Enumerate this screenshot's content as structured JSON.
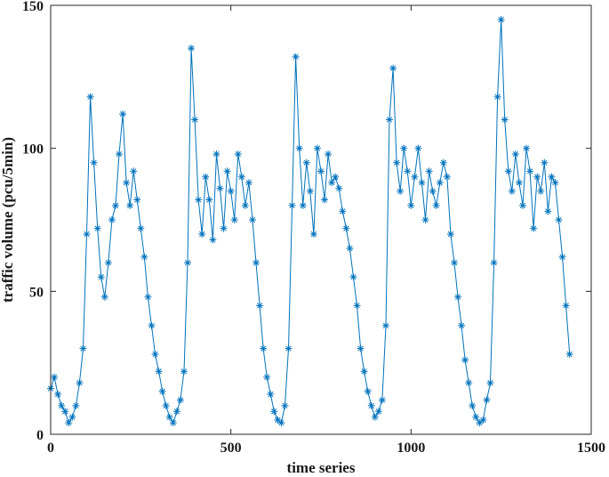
{
  "chart_data": {
    "type": "line",
    "marker": "asterisk",
    "xlabel": "time series",
    "ylabel": "traffic volume (pcu/5min)",
    "xlim": [
      0,
      1500
    ],
    "ylim": [
      0,
      150
    ],
    "xticks": [
      0,
      500,
      1000,
      1500
    ],
    "yticks": [
      0,
      50,
      100,
      150
    ],
    "grid": false,
    "legend": "none",
    "series": [
      {
        "color": "#0072BD",
        "x": [
          0,
          10,
          20,
          30,
          40,
          50,
          60,
          70,
          80,
          90,
          100,
          110,
          120,
          130,
          140,
          150,
          160,
          170,
          180,
          190,
          200,
          210,
          220,
          230,
          240,
          250,
          260,
          270,
          280,
          290,
          300,
          310,
          320,
          330,
          340,
          350,
          360,
          370,
          380,
          390,
          400,
          410,
          420,
          430,
          440,
          450,
          460,
          470,
          480,
          490,
          500,
          510,
          520,
          530,
          540,
          550,
          560,
          570,
          580,
          590,
          600,
          610,
          620,
          630,
          640,
          650,
          660,
          670,
          680,
          690,
          700,
          710,
          720,
          730,
          740,
          750,
          760,
          770,
          780,
          790,
          800,
          810,
          820,
          830,
          840,
          850,
          860,
          870,
          880,
          890,
          900,
          910,
          920,
          930,
          940,
          950,
          960,
          970,
          980,
          990,
          1000,
          1010,
          1020,
          1030,
          1040,
          1050,
          1060,
          1070,
          1080,
          1090,
          1100,
          1110,
          1120,
          1130,
          1140,
          1150,
          1160,
          1170,
          1180,
          1190,
          1200,
          1210,
          1220,
          1230,
          1240,
          1250,
          1260,
          1270,
          1280,
          1290,
          1300,
          1310,
          1320,
          1330,
          1340,
          1350,
          1360,
          1370,
          1380,
          1390,
          1400,
          1410,
          1420,
          1430,
          1440
        ],
        "y": [
          16,
          20,
          14,
          10,
          8,
          4,
          6,
          10,
          18,
          30,
          70,
          118,
          95,
          72,
          55,
          48,
          60,
          75,
          80,
          98,
          112,
          88,
          80,
          92,
          82,
          72,
          62,
          48,
          38,
          28,
          22,
          15,
          10,
          6,
          4,
          8,
          12,
          22,
          60,
          135,
          110,
          82,
          70,
          90,
          82,
          68,
          98,
          86,
          72,
          92,
          85,
          75,
          98,
          90,
          80,
          88,
          75,
          60,
          45,
          30,
          20,
          14,
          8,
          5,
          4,
          10,
          30,
          80,
          132,
          100,
          80,
          95,
          85,
          70,
          100,
          92,
          82,
          98,
          88,
          90,
          86,
          78,
          72,
          65,
          55,
          45,
          30,
          22,
          15,
          10,
          6,
          8,
          12,
          38,
          110,
          128,
          95,
          85,
          100,
          92,
          80,
          90,
          100,
          88,
          75,
          92,
          85,
          80,
          88,
          95,
          90,
          70,
          60,
          48,
          38,
          26,
          18,
          10,
          6,
          4,
          5,
          12,
          18,
          60,
          118,
          145,
          110,
          92,
          85,
          98,
          88,
          80,
          100,
          92,
          72,
          90,
          85,
          95,
          78,
          90,
          88,
          75,
          62,
          45,
          28
        ]
      }
    ]
  }
}
